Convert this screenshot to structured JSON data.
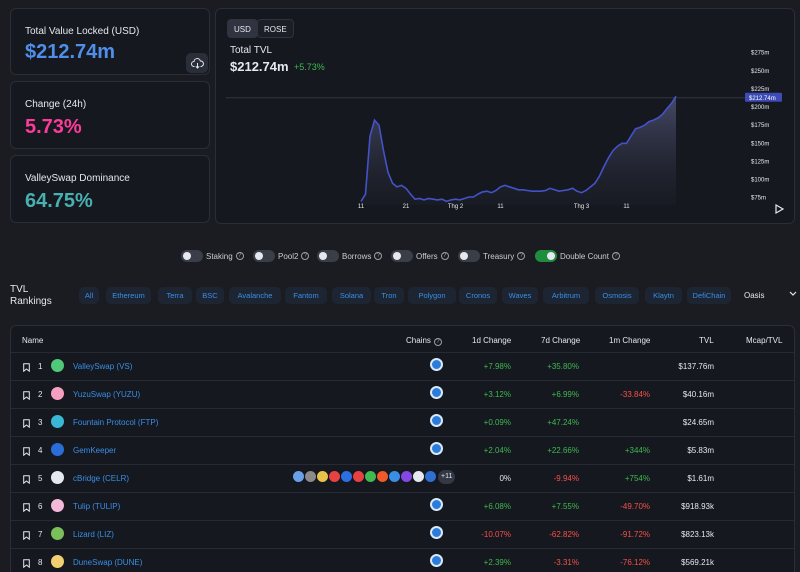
{
  "stats": {
    "tvl": {
      "label": "Total Value Locked (USD)",
      "value": "$212.74m"
    },
    "change": {
      "label": "Change (24h)",
      "value": "5.73%"
    },
    "dominance": {
      "label": "ValleySwap Dominance",
      "value": "64.75%"
    }
  },
  "chart_header": {
    "currencies": [
      "USD",
      "ROSE"
    ],
    "active_currency": "USD",
    "title": "Total TVL",
    "value": "$212.74m",
    "change": "+5.73%"
  },
  "chart_data": {
    "type": "area",
    "title": "Total TVL",
    "y_unit": "USD millions",
    "ylim": [
      65,
      280
    ],
    "y_ticks": [
      {
        "v": 75,
        "label": "$75m"
      },
      {
        "v": 100,
        "label": "$100m"
      },
      {
        "v": 125,
        "label": "$125m"
      },
      {
        "v": 150,
        "label": "$150m"
      },
      {
        "v": 175,
        "label": "$175m"
      },
      {
        "v": 200,
        "label": "$200m"
      },
      {
        "v": 225,
        "label": "$225m"
      },
      {
        "v": 250,
        "label": "$250m"
      },
      {
        "v": 275,
        "label": "$275m"
      }
    ],
    "current_label": "$212.74m",
    "current_value": 212.74,
    "x_ticks": [
      {
        "i": 0,
        "label": "11"
      },
      {
        "i": 10,
        "label": "21"
      },
      {
        "i": 21,
        "label": "Thg 2"
      },
      {
        "i": 31,
        "label": "11"
      },
      {
        "i": 49,
        "label": "Thg 3"
      },
      {
        "i": 59,
        "label": "11"
      }
    ],
    "series": [
      {
        "values": [
          70,
          80,
          160,
          182,
          175,
          140,
          110,
          95,
          90,
          92,
          88,
          80,
          73,
          74,
          72,
          74,
          73,
          72,
          73,
          70,
          72,
          73,
          72,
          74,
          76,
          76,
          80,
          83,
          84,
          82,
          85,
          90,
          92,
          90,
          88,
          86,
          86,
          85,
          84,
          84,
          84,
          85,
          88,
          86,
          84,
          85,
          86,
          88,
          84,
          82,
          85,
          90,
          95,
          105,
          118,
          130,
          140,
          146,
          150,
          150,
          160,
          170,
          172,
          175,
          180,
          182,
          185,
          190,
          198,
          205,
          215
        ]
      }
    ]
  },
  "toggles": [
    {
      "label": "Staking",
      "on": false
    },
    {
      "label": "Pool2",
      "on": false
    },
    {
      "label": "Borrows",
      "on": false
    },
    {
      "label": "Offers",
      "on": false
    },
    {
      "label": "Treasury",
      "on": false
    },
    {
      "label": "Double Count",
      "on": true
    }
  ],
  "rankings": {
    "title": "TVL Rankings",
    "chains": [
      "All",
      "Ethereum",
      "Terra",
      "BSC",
      "Avalanche",
      "Fantom",
      "Solana",
      "Tron",
      "Polygon",
      "Cronos",
      "Waves",
      "Arbitrum",
      "Osmosis",
      "Klaytn",
      "DefiChain"
    ],
    "active_chain": "Oasis"
  },
  "table": {
    "headers": {
      "name": "Name",
      "chains": "Chains",
      "d1": "1d Change",
      "d7": "7d Change",
      "m1": "1m Change",
      "tvl": "TVL",
      "mcap": "Mcap/TVL"
    },
    "rows": [
      {
        "rank": "1",
        "name": "ValleySwap (VS)",
        "d1": "+7.98%",
        "d7": "+35.80%",
        "m1": "",
        "tvl": "$137.76m",
        "logo": "#4fc87a"
      },
      {
        "rank": "2",
        "name": "YuzuSwap (YUZU)",
        "d1": "+3.12%",
        "d7": "+6.99%",
        "m1": "-33.84%",
        "tvl": "$40.16m",
        "logo": "#f5a0c0"
      },
      {
        "rank": "3",
        "name": "Fountain Protocol (FTP)",
        "d1": "+0.09%",
        "d7": "+47.24%",
        "m1": "",
        "tvl": "$24.65m",
        "logo": "#3ab7d4"
      },
      {
        "rank": "4",
        "name": "GemKeeper",
        "d1": "+2.04%",
        "d7": "+22.66%",
        "m1": "+344%",
        "tvl": "$5.83m",
        "logo": "#2a6dd8"
      },
      {
        "rank": "5",
        "name": "cBridge (CELR)",
        "d1": "0%",
        "d7": "-9.94%",
        "m1": "+754%",
        "tvl": "$1.61m",
        "logo": "#e6e8ef",
        "more_chains": "+11"
      },
      {
        "rank": "6",
        "name": "Tulip (TULIP)",
        "d1": "+6.08%",
        "d7": "+7.55%",
        "m1": "-49.70%",
        "tvl": "$918.93k",
        "logo": "#f4b8d8"
      },
      {
        "rank": "7",
        "name": "Lizard (LIZ)",
        "d1": "-10.07%",
        "d7": "-62.82%",
        "m1": "-91.72%",
        "tvl": "$823.13k",
        "logo": "#7ac05a"
      },
      {
        "rank": "8",
        "name": "DuneSwap (DUNE)",
        "d1": "+2.39%",
        "d7": "-3.31%",
        "m1": "-76.12%",
        "tvl": "$569.21k",
        "logo": "#f0d070"
      }
    ]
  }
}
